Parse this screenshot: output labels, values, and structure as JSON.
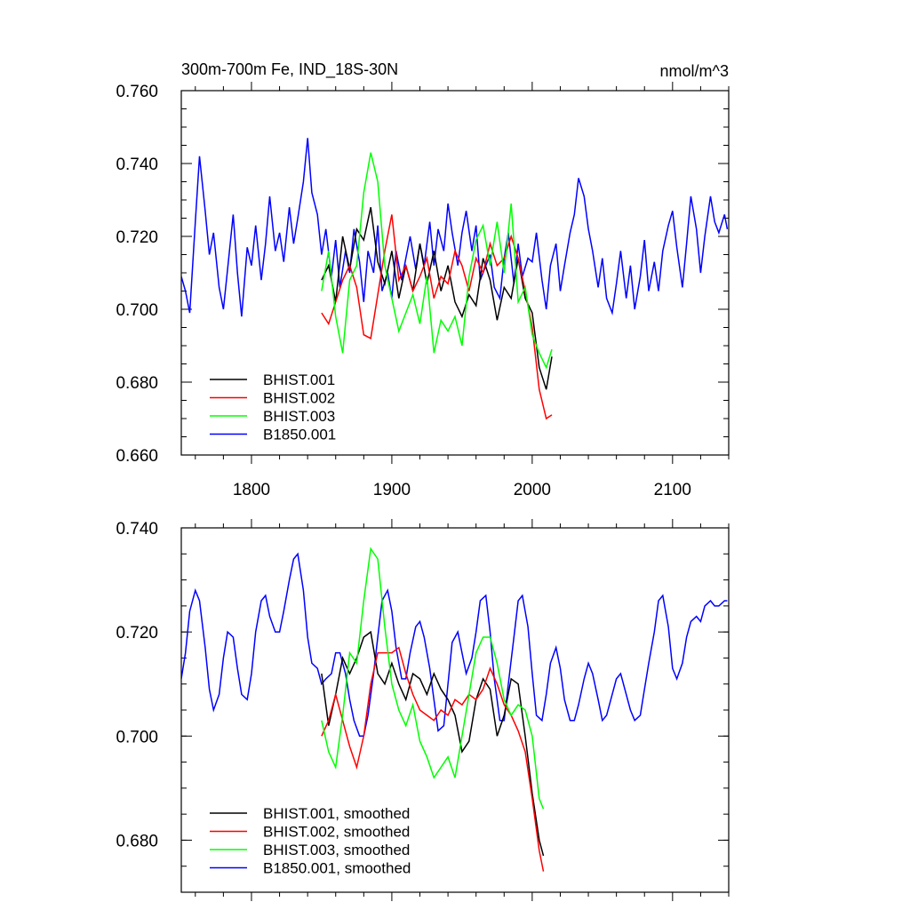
{
  "chart_data": [
    {
      "type": "line",
      "title": "300m-700m Fe, IND_18S-30N",
      "units": "nmol/m^3",
      "xlim": [
        1750,
        2140
      ],
      "ylim": [
        0.66,
        0.76
      ],
      "x_ticks": [
        1800,
        1900,
        2000,
        2100
      ],
      "x_tick_labels": [
        "1800",
        "1900",
        "2000",
        "2100"
      ],
      "y_ticks": [
        0.66,
        0.68,
        0.7,
        0.72,
        0.74,
        0.76
      ],
      "y_tick_labels": [
        "0.660",
        "0.680",
        "0.700",
        "0.720",
        "0.740",
        "0.760"
      ],
      "legend_position": "bottom-left",
      "series": [
        {
          "name": "BHIST.001",
          "color": "#000000",
          "x": [
            1850,
            1855,
            1860,
            1865,
            1870,
            1875,
            1880,
            1885,
            1890,
            1895,
            1900,
            1905,
            1910,
            1915,
            1920,
            1925,
            1930,
            1935,
            1940,
            1945,
            1950,
            1955,
            1960,
            1965,
            1970,
            1975,
            1980,
            1985,
            1990,
            1995,
            2000,
            2005,
            2010,
            2014
          ],
          "y": [
            0.708,
            0.712,
            0.702,
            0.72,
            0.711,
            0.722,
            0.719,
            0.728,
            0.713,
            0.707,
            0.716,
            0.703,
            0.712,
            0.705,
            0.718,
            0.707,
            0.716,
            0.705,
            0.712,
            0.702,
            0.698,
            0.704,
            0.701,
            0.714,
            0.708,
            0.697,
            0.706,
            0.703,
            0.714,
            0.703,
            0.699,
            0.684,
            0.678,
            0.687
          ]
        },
        {
          "name": "BHIST.002",
          "color": "#ff0000",
          "x": [
            1850,
            1855,
            1860,
            1865,
            1870,
            1875,
            1880,
            1885,
            1890,
            1895,
            1900,
            1905,
            1910,
            1915,
            1920,
            1925,
            1930,
            1935,
            1940,
            1945,
            1950,
            1955,
            1960,
            1965,
            1970,
            1975,
            1980,
            1985,
            1990,
            1995,
            2000,
            2005,
            2010,
            2014
          ],
          "y": [
            0.699,
            0.696,
            0.702,
            0.708,
            0.712,
            0.706,
            0.693,
            0.692,
            0.704,
            0.716,
            0.726,
            0.708,
            0.712,
            0.705,
            0.709,
            0.714,
            0.703,
            0.709,
            0.707,
            0.716,
            0.712,
            0.705,
            0.714,
            0.71,
            0.718,
            0.712,
            0.714,
            0.72,
            0.714,
            0.705,
            0.695,
            0.678,
            0.67,
            0.671
          ]
        },
        {
          "name": "BHIST.003",
          "color": "#00ff00",
          "x": [
            1850,
            1855,
            1860,
            1865,
            1870,
            1875,
            1880,
            1885,
            1890,
            1895,
            1900,
            1905,
            1910,
            1915,
            1920,
            1925,
            1930,
            1935,
            1940,
            1945,
            1950,
            1955,
            1960,
            1965,
            1970,
            1975,
            1980,
            1985,
            1990,
            1995,
            2000,
            2005,
            2010,
            2014
          ],
          "y": [
            0.705,
            0.716,
            0.698,
            0.688,
            0.708,
            0.712,
            0.732,
            0.743,
            0.735,
            0.712,
            0.703,
            0.694,
            0.699,
            0.704,
            0.696,
            0.709,
            0.688,
            0.697,
            0.694,
            0.698,
            0.69,
            0.709,
            0.719,
            0.723,
            0.712,
            0.724,
            0.71,
            0.729,
            0.702,
            0.706,
            0.693,
            0.688,
            0.684,
            0.689
          ]
        },
        {
          "name": "B1850.001",
          "color": "#0000ff",
          "x": [
            1750,
            1753,
            1756,
            1760,
            1763,
            1767,
            1770,
            1773,
            1777,
            1780,
            1783,
            1787,
            1790,
            1793,
            1797,
            1800,
            1803,
            1807,
            1810,
            1813,
            1817,
            1820,
            1823,
            1827,
            1830,
            1833,
            1837,
            1840,
            1843,
            1847,
            1850,
            1853,
            1857,
            1860,
            1863,
            1867,
            1870,
            1873,
            1877,
            1880,
            1883,
            1887,
            1890,
            1893,
            1897,
            1900,
            1903,
            1907,
            1910,
            1913,
            1917,
            1920,
            1923,
            1927,
            1930,
            1933,
            1937,
            1940,
            1943,
            1947,
            1950,
            1953,
            1957,
            1960,
            1963,
            1967,
            1970,
            1973,
            1977,
            1980,
            1983,
            1987,
            1990,
            1993,
            1997,
            2000,
            2003,
            2007,
            2010,
            2013,
            2017,
            2020,
            2023,
            2027,
            2030,
            2033,
            2037,
            2040,
            2043,
            2047,
            2050,
            2053,
            2057,
            2060,
            2063,
            2067,
            2070,
            2073,
            2077,
            2080,
            2083,
            2087,
            2090,
            2093,
            2097,
            2100,
            2103,
            2107,
            2110,
            2113,
            2117,
            2120,
            2123,
            2127,
            2130,
            2133,
            2137,
            2139
          ],
          "y": [
            0.709,
            0.705,
            0.699,
            0.724,
            0.742,
            0.727,
            0.715,
            0.721,
            0.706,
            0.7,
            0.711,
            0.726,
            0.71,
            0.698,
            0.717,
            0.712,
            0.723,
            0.708,
            0.718,
            0.731,
            0.716,
            0.721,
            0.713,
            0.728,
            0.718,
            0.725,
            0.735,
            0.747,
            0.732,
            0.726,
            0.715,
            0.722,
            0.709,
            0.719,
            0.706,
            0.716,
            0.71,
            0.722,
            0.713,
            0.702,
            0.716,
            0.71,
            0.723,
            0.705,
            0.71,
            0.703,
            0.716,
            0.708,
            0.714,
            0.72,
            0.711,
            0.718,
            0.712,
            0.724,
            0.712,
            0.722,
            0.716,
            0.729,
            0.721,
            0.712,
            0.721,
            0.727,
            0.716,
            0.723,
            0.708,
            0.712,
            0.715,
            0.706,
            0.703,
            0.714,
            0.721,
            0.707,
            0.718,
            0.709,
            0.714,
            0.713,
            0.721,
            0.708,
            0.7,
            0.712,
            0.718,
            0.705,
            0.712,
            0.721,
            0.726,
            0.736,
            0.731,
            0.722,
            0.716,
            0.706,
            0.714,
            0.703,
            0.699,
            0.707,
            0.716,
            0.703,
            0.712,
            0.7,
            0.709,
            0.719,
            0.705,
            0.713,
            0.705,
            0.716,
            0.723,
            0.727,
            0.717,
            0.706,
            0.718,
            0.731,
            0.722,
            0.71,
            0.72,
            0.731,
            0.724,
            0.721,
            0.726,
            0.722
          ]
        }
      ]
    },
    {
      "type": "line",
      "title": "",
      "xlim": [
        1750,
        2140
      ],
      "ylim": [
        0.67,
        0.74
      ],
      "x_ticks": [
        1800,
        1900,
        2000,
        2100
      ],
      "y_ticks": [
        0.68,
        0.7,
        0.72,
        0.74
      ],
      "y_tick_labels": [
        "0.680",
        "0.700",
        "0.720",
        "0.740"
      ],
      "legend_position": "bottom-left",
      "series": [
        {
          "name": "BHIST.001, smoothed",
          "color": "#000000",
          "x": [
            1850,
            1855,
            1860,
            1865,
            1870,
            1875,
            1880,
            1885,
            1890,
            1895,
            1900,
            1905,
            1910,
            1915,
            1920,
            1925,
            1930,
            1935,
            1940,
            1945,
            1950,
            1955,
            1960,
            1965,
            1970,
            1975,
            1980,
            1985,
            1990,
            1995,
            2000,
            2005,
            2008
          ],
          "y": [
            0.712,
            0.702,
            0.708,
            0.715,
            0.712,
            0.715,
            0.719,
            0.72,
            0.712,
            0.71,
            0.714,
            0.71,
            0.707,
            0.712,
            0.711,
            0.708,
            0.712,
            0.709,
            0.707,
            0.704,
            0.697,
            0.699,
            0.707,
            0.711,
            0.709,
            0.7,
            0.704,
            0.711,
            0.71,
            0.7,
            0.689,
            0.68,
            0.677
          ]
        },
        {
          "name": "BHIST.002, smoothed",
          "color": "#ff0000",
          "x": [
            1850,
            1855,
            1860,
            1865,
            1870,
            1875,
            1880,
            1885,
            1890,
            1895,
            1900,
            1905,
            1910,
            1915,
            1920,
            1925,
            1930,
            1935,
            1940,
            1945,
            1950,
            1955,
            1960,
            1965,
            1970,
            1975,
            1980,
            1985,
            1990,
            1995,
            2000,
            2005,
            2008
          ],
          "y": [
            0.7,
            0.703,
            0.708,
            0.703,
            0.698,
            0.694,
            0.7,
            0.71,
            0.716,
            0.716,
            0.716,
            0.717,
            0.712,
            0.708,
            0.705,
            0.704,
            0.703,
            0.705,
            0.704,
            0.707,
            0.706,
            0.708,
            0.707,
            0.709,
            0.713,
            0.71,
            0.706,
            0.704,
            0.701,
            0.697,
            0.688,
            0.678,
            0.674
          ]
        },
        {
          "name": "BHIST.003, smoothed",
          "color": "#00ff00",
          "x": [
            1850,
            1855,
            1860,
            1865,
            1870,
            1875,
            1880,
            1885,
            1890,
            1895,
            1900,
            1905,
            1910,
            1915,
            1920,
            1925,
            1930,
            1935,
            1940,
            1945,
            1950,
            1955,
            1960,
            1965,
            1970,
            1975,
            1980,
            1985,
            1990,
            1995,
            2000,
            2005,
            2008
          ],
          "y": [
            0.703,
            0.697,
            0.694,
            0.704,
            0.716,
            0.714,
            0.726,
            0.736,
            0.734,
            0.721,
            0.71,
            0.705,
            0.702,
            0.706,
            0.699,
            0.696,
            0.692,
            0.694,
            0.696,
            0.692,
            0.7,
            0.708,
            0.716,
            0.719,
            0.719,
            0.714,
            0.707,
            0.704,
            0.706,
            0.705,
            0.7,
            0.688,
            0.686
          ]
        },
        {
          "name": "B1850.001, smoothed",
          "color": "#0000ff",
          "x": [
            1750,
            1753,
            1756,
            1760,
            1763,
            1767,
            1770,
            1773,
            1777,
            1780,
            1783,
            1787,
            1790,
            1793,
            1797,
            1800,
            1803,
            1807,
            1810,
            1813,
            1817,
            1820,
            1823,
            1827,
            1830,
            1833,
            1837,
            1840,
            1843,
            1847,
            1850,
            1853,
            1857,
            1860,
            1863,
            1867,
            1870,
            1873,
            1877,
            1880,
            1883,
            1887,
            1890,
            1893,
            1897,
            1900,
            1903,
            1907,
            1910,
            1913,
            1917,
            1920,
            1923,
            1927,
            1930,
            1933,
            1937,
            1940,
            1943,
            1947,
            1950,
            1953,
            1957,
            1960,
            1963,
            1967,
            1970,
            1973,
            1977,
            1980,
            1983,
            1987,
            1990,
            1993,
            1997,
            2000,
            2003,
            2007,
            2010,
            2013,
            2017,
            2020,
            2023,
            2027,
            2030,
            2033,
            2037,
            2040,
            2043,
            2047,
            2050,
            2053,
            2057,
            2060,
            2063,
            2067,
            2070,
            2073,
            2077,
            2080,
            2083,
            2087,
            2090,
            2093,
            2097,
            2100,
            2103,
            2107,
            2110,
            2113,
            2117,
            2120,
            2123,
            2127,
            2130,
            2133,
            2137,
            2139
          ],
          "y": [
            0.711,
            0.716,
            0.724,
            0.728,
            0.726,
            0.717,
            0.709,
            0.705,
            0.708,
            0.715,
            0.72,
            0.719,
            0.713,
            0.708,
            0.707,
            0.712,
            0.72,
            0.726,
            0.727,
            0.723,
            0.72,
            0.72,
            0.724,
            0.73,
            0.734,
            0.735,
            0.728,
            0.719,
            0.714,
            0.713,
            0.71,
            0.711,
            0.712,
            0.716,
            0.716,
            0.712,
            0.707,
            0.703,
            0.7,
            0.7,
            0.704,
            0.712,
            0.719,
            0.726,
            0.728,
            0.724,
            0.717,
            0.711,
            0.711,
            0.716,
            0.721,
            0.722,
            0.719,
            0.713,
            0.707,
            0.701,
            0.702,
            0.71,
            0.718,
            0.72,
            0.716,
            0.712,
            0.715,
            0.72,
            0.726,
            0.727,
            0.72,
            0.711,
            0.703,
            0.703,
            0.71,
            0.719,
            0.726,
            0.727,
            0.721,
            0.712,
            0.704,
            0.703,
            0.708,
            0.714,
            0.717,
            0.713,
            0.707,
            0.703,
            0.703,
            0.706,
            0.711,
            0.714,
            0.712,
            0.707,
            0.703,
            0.704,
            0.708,
            0.711,
            0.712,
            0.708,
            0.705,
            0.703,
            0.704,
            0.709,
            0.714,
            0.72,
            0.726,
            0.727,
            0.721,
            0.713,
            0.711,
            0.714,
            0.719,
            0.722,
            0.723,
            0.722,
            0.725,
            0.726,
            0.725,
            0.725,
            0.726,
            0.726
          ]
        }
      ]
    }
  ]
}
